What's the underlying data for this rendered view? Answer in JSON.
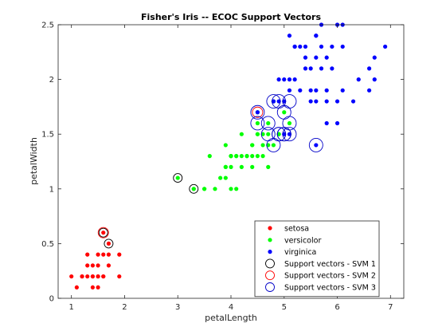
{
  "chart_data": {
    "type": "scatter",
    "title": "Fisher's Iris -- ECOC Support Vectors",
    "xlabel": "petalLength",
    "ylabel": "petalWidth",
    "xlim": [
      0.75,
      7.25
    ],
    "ylim": [
      0,
      2.5
    ],
    "xticks": [
      1,
      2,
      3,
      4,
      5,
      6,
      7
    ],
    "yticks": [
      0,
      0.5,
      1,
      1.5,
      2,
      2.5
    ],
    "ytick_labels": [
      "0",
      "0.5",
      "1",
      "1.5",
      "2",
      "2.5"
    ],
    "grid": false,
    "legend_position": "bottom-right",
    "series": [
      {
        "name": "setosa",
        "color": "#ff0000",
        "marker": "dot",
        "points": [
          [
            1.4,
            0.2
          ],
          [
            1.3,
            0.2
          ],
          [
            1.5,
            0.2
          ],
          [
            1.7,
            0.4
          ],
          [
            1.4,
            0.3
          ],
          [
            1.5,
            0.1
          ],
          [
            1.6,
            0.2
          ],
          [
            1.1,
            0.1
          ],
          [
            1.2,
            0.2
          ],
          [
            1.5,
            0.4
          ],
          [
            1.3,
            0.4
          ],
          [
            1.7,
            0.3
          ],
          [
            1.5,
            0.3
          ],
          [
            1.0,
            0.2
          ],
          [
            1.7,
            0.5
          ],
          [
            1.9,
            0.2
          ],
          [
            1.6,
            0.4
          ],
          [
            1.4,
            0.1
          ],
          [
            1.6,
            0.6
          ],
          [
            1.9,
            0.4
          ],
          [
            1.3,
            0.3
          ],
          [
            1.6,
            0.2
          ],
          [
            1.4,
            0.2
          ],
          [
            1.2,
            0.2
          ],
          [
            1.5,
            0.2
          ]
        ]
      },
      {
        "name": "versicolor",
        "color": "#00ff00",
        "marker": "dot",
        "points": [
          [
            4.7,
            1.4
          ],
          [
            4.5,
            1.5
          ],
          [
            4.9,
            1.5
          ],
          [
            4.0,
            1.3
          ],
          [
            4.6,
            1.5
          ],
          [
            4.5,
            1.3
          ],
          [
            4.7,
            1.6
          ],
          [
            3.3,
            1.0
          ],
          [
            4.6,
            1.3
          ],
          [
            3.9,
            1.4
          ],
          [
            3.5,
            1.0
          ],
          [
            4.2,
            1.5
          ],
          [
            4.0,
            1.0
          ],
          [
            3.6,
            1.3
          ],
          [
            4.4,
            1.4
          ],
          [
            4.1,
            1.0
          ],
          [
            4.5,
            1.5
          ],
          [
            3.9,
            1.1
          ],
          [
            4.8,
            1.8
          ],
          [
            4.0,
            1.3
          ],
          [
            4.9,
            1.5
          ],
          [
            4.7,
            1.2
          ],
          [
            4.3,
            1.3
          ],
          [
            4.4,
            1.4
          ],
          [
            5.0,
            1.7
          ],
          [
            3.5,
            1.0
          ],
          [
            3.8,
            1.1
          ],
          [
            3.7,
            1.0
          ],
          [
            3.9,
            1.2
          ],
          [
            5.1,
            1.6
          ],
          [
            4.5,
            1.6
          ],
          [
            4.7,
            1.5
          ],
          [
            4.1,
            1.3
          ],
          [
            4.0,
            1.3
          ],
          [
            4.4,
            1.2
          ],
          [
            4.6,
            1.4
          ],
          [
            4.0,
            1.2
          ],
          [
            3.3,
            1.0
          ],
          [
            4.2,
            1.3
          ],
          [
            4.2,
            1.2
          ],
          [
            4.3,
            1.3
          ],
          [
            3.0,
            1.1
          ],
          [
            4.1,
            1.3
          ],
          [
            4.8,
            1.4
          ],
          [
            4.4,
            1.3
          ],
          [
            3.9,
            1.2
          ],
          [
            4.5,
            1.7
          ]
        ]
      },
      {
        "name": "virginica",
        "color": "#0000ff",
        "marker": "dot",
        "points": [
          [
            6.0,
            2.5
          ],
          [
            5.1,
            1.9
          ],
          [
            5.9,
            2.1
          ],
          [
            5.6,
            1.8
          ],
          [
            5.8,
            2.2
          ],
          [
            6.6,
            2.1
          ],
          [
            4.5,
            1.7
          ],
          [
            6.3,
            1.8
          ],
          [
            6.1,
            2.5
          ],
          [
            5.1,
            2.0
          ],
          [
            5.3,
            1.9
          ],
          [
            5.5,
            2.1
          ],
          [
            5.0,
            2.0
          ],
          [
            5.1,
            2.4
          ],
          [
            5.3,
            2.3
          ],
          [
            6.7,
            2.2
          ],
          [
            6.9,
            2.3
          ],
          [
            5.0,
            1.5
          ],
          [
            5.7,
            2.3
          ],
          [
            4.9,
            2.0
          ],
          [
            6.7,
            2.0
          ],
          [
            4.9,
            1.8
          ],
          [
            5.7,
            2.1
          ],
          [
            6.0,
            1.8
          ],
          [
            4.8,
            1.8
          ],
          [
            5.8,
            1.6
          ],
          [
            6.1,
            1.9
          ],
          [
            6.4,
            2.0
          ],
          [
            5.6,
            2.2
          ],
          [
            5.1,
            1.5
          ],
          [
            5.6,
            1.4
          ],
          [
            6.1,
            2.3
          ],
          [
            5.6,
            2.4
          ],
          [
            5.5,
            1.8
          ],
          [
            5.4,
            2.1
          ],
          [
            5.6,
            2.4
          ],
          [
            5.2,
            2.3
          ],
          [
            5.4,
            2.3
          ],
          [
            5.2,
            2.0
          ],
          [
            5.8,
            1.8
          ],
          [
            5.4,
            2.2
          ],
          [
            5.6,
            1.9
          ],
          [
            5.8,
            1.9
          ],
          [
            5.5,
            1.9
          ],
          [
            5.9,
            2.3
          ],
          [
            5.7,
            2.5
          ],
          [
            5.2,
            2.3
          ],
          [
            6.0,
            1.6
          ],
          [
            4.8,
            1.8
          ],
          [
            6.6,
            1.9
          ],
          [
            5.0,
            1.8
          ]
        ]
      },
      {
        "name": "Support vectors - SVM 1",
        "color": "#000000",
        "marker": "circle",
        "points": [
          [
            1.6,
            0.6
          ],
          [
            1.7,
            0.5
          ],
          [
            3.0,
            1.1
          ],
          [
            3.3,
            1.0
          ]
        ]
      },
      {
        "name": "Support vectors - SVM 2",
        "color": "#ff0000",
        "marker": "circle",
        "points": [
          [
            1.6,
            0.6
          ],
          [
            4.5,
            1.7
          ]
        ]
      },
      {
        "name": "Support vectors - SVM 3",
        "color": "#0000c8",
        "marker": "circle",
        "points": [
          [
            4.5,
            1.7
          ],
          [
            4.7,
            1.6
          ],
          [
            4.8,
            1.8
          ],
          [
            4.9,
            1.8
          ],
          [
            5.0,
            1.7
          ],
          [
            5.1,
            1.6
          ],
          [
            5.1,
            1.8
          ],
          [
            5.0,
            1.5
          ],
          [
            4.9,
            1.5
          ],
          [
            4.8,
            1.4
          ],
          [
            4.5,
            1.6
          ],
          [
            4.7,
            1.5
          ],
          [
            5.0,
            1.5
          ],
          [
            5.1,
            1.5
          ],
          [
            4.9,
            1.5
          ],
          [
            5.6,
            1.4
          ]
        ]
      }
    ]
  }
}
